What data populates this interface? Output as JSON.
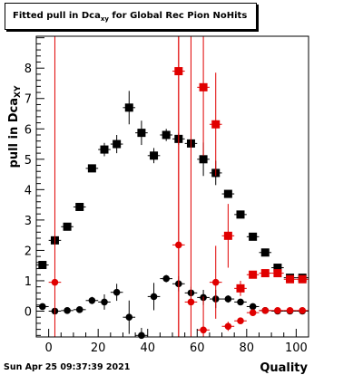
{
  "title_main": "Fitted pull in Dca",
  "title_sub": "xy",
  "title_rest": " for Global Rec Pion NoHits",
  "footer": "Sun Apr 25 09:37:39 2021",
  "chart_data": {
    "type": "scatter",
    "xlabel": "Quality",
    "ylabel_main": "pull in Dca",
    "ylabel_sub": "XY",
    "xlim": [
      -5,
      105
    ],
    "ylim": [
      -0.85,
      9.05
    ],
    "xticks": [
      0,
      20,
      40,
      60,
      80,
      100
    ],
    "yticks": [
      0,
      1,
      2,
      3,
      4,
      5,
      6,
      7,
      8
    ],
    "colors": {
      "black": "#000000",
      "red": "#e00000"
    },
    "series": [
      {
        "marker": "square",
        "color": "#000000",
        "points": [
          {
            "x": -2.5,
            "y": 1.52,
            "ey": 0.1
          },
          {
            "x": 2.5,
            "y": 2.33,
            "ey": 0.15
          },
          {
            "x": 7.5,
            "y": 2.78,
            "ey": 0.1
          },
          {
            "x": 12.5,
            "y": 3.43,
            "ey": 0.1
          },
          {
            "x": 17.5,
            "y": 4.7,
            "ey": 0.12
          },
          {
            "x": 22.5,
            "y": 5.32,
            "ey": 0.22
          },
          {
            "x": 27.5,
            "y": 5.5,
            "ey": 0.3
          },
          {
            "x": 32.5,
            "y": 6.7,
            "ey": 0.55
          },
          {
            "x": 37.5,
            "y": 5.87,
            "ey": 0.4
          },
          {
            "x": 42.5,
            "y": 5.12,
            "ey": 0.25
          },
          {
            "x": 47.5,
            "y": 5.8,
            "ey": 0.2
          },
          {
            "x": 52.5,
            "y": 5.67,
            "ey": 0.2
          },
          {
            "x": 57.5,
            "y": 5.52,
            "ey": 0.15
          },
          {
            "x": 62.5,
            "y": 5.0,
            "ey": 0.55
          },
          {
            "x": 67.5,
            "y": 4.55,
            "ey": 0.4
          },
          {
            "x": 72.5,
            "y": 3.86,
            "ey": 0.12
          },
          {
            "x": 77.5,
            "y": 3.18,
            "ey": 0.1
          },
          {
            "x": 82.5,
            "y": 2.45,
            "ey": 0.08
          },
          {
            "x": 87.5,
            "y": 1.93,
            "ey": 0.06
          },
          {
            "x": 92.5,
            "y": 1.43,
            "ey": 0.05
          },
          {
            "x": 97.5,
            "y": 1.1,
            "ey": 0.05
          },
          {
            "x": 102.5,
            "y": 1.1,
            "ey": 0.05
          }
        ]
      },
      {
        "marker": "circle",
        "color": "#000000",
        "points": [
          {
            "x": -2.5,
            "y": 0.15,
            "ey": 0.05
          },
          {
            "x": 2.5,
            "y": 0.0,
            "ey": 0.05
          },
          {
            "x": 7.5,
            "y": 0.02,
            "ey": 0.05
          },
          {
            "x": 12.5,
            "y": 0.05,
            "ey": 0.06
          },
          {
            "x": 17.5,
            "y": 0.35,
            "ey": 0.12
          },
          {
            "x": 22.5,
            "y": 0.3,
            "ey": 0.25
          },
          {
            "x": 27.5,
            "y": 0.62,
            "ey": 0.28
          },
          {
            "x": 32.5,
            "y": -0.2,
            "ey": 0.55
          },
          {
            "x": 37.5,
            "y": -0.8,
            "ey": 0.25
          },
          {
            "x": 42.5,
            "y": 0.48,
            "ey": 0.45
          },
          {
            "x": 47.5,
            "y": 1.07,
            "ey": 0.12
          },
          {
            "x": 52.5,
            "y": 0.9,
            "ey": 0.25
          },
          {
            "x": 57.5,
            "y": 0.6,
            "ey": 0.2
          },
          {
            "x": 62.5,
            "y": 0.45,
            "ey": 0.25
          },
          {
            "x": 67.5,
            "y": 0.4,
            "ey": 0.3
          },
          {
            "x": 72.5,
            "y": 0.4,
            "ey": 0.12
          },
          {
            "x": 77.5,
            "y": 0.3,
            "ey": 0.1
          },
          {
            "x": 82.5,
            "y": 0.15,
            "ey": 0.05
          },
          {
            "x": 87.5,
            "y": 0.02,
            "ey": 0.05
          },
          {
            "x": 92.5,
            "y": 0.0,
            "ey": 0.05
          },
          {
            "x": 97.5,
            "y": 0.0,
            "ey": 0.05
          },
          {
            "x": 102.5,
            "y": 0.0,
            "ey": 0.05
          }
        ]
      },
      {
        "marker": "square",
        "color": "#e00000",
        "points": [
          {
            "x": 52.5,
            "y": 7.9,
            "ey": 99
          },
          {
            "x": 62.5,
            "y": 7.37,
            "ey": 2.25
          },
          {
            "x": 67.5,
            "y": 6.15,
            "ey": 1.7
          },
          {
            "x": 72.5,
            "y": 2.48,
            "ey": 1.05
          },
          {
            "x": 77.5,
            "y": 0.75,
            "ey": 0.25
          },
          {
            "x": 82.5,
            "y": 1.2,
            "ey": 0.08
          },
          {
            "x": 87.5,
            "y": 1.25,
            "ey": 0.06
          },
          {
            "x": 92.5,
            "y": 1.25,
            "ey": 0.06
          },
          {
            "x": 97.5,
            "y": 1.05,
            "ey": 0.05
          },
          {
            "x": 102.5,
            "y": 1.05,
            "ey": 0.05
          }
        ]
      },
      {
        "marker": "circle",
        "color": "#e00000",
        "points": [
          {
            "x": 2.5,
            "y": 0.95,
            "ey": 99
          },
          {
            "x": 52.5,
            "y": 2.18,
            "ey": 99
          },
          {
            "x": 57.5,
            "y": 0.3,
            "ey": 99
          },
          {
            "x": 62.5,
            "y": -0.62,
            "ey": 1.1
          },
          {
            "x": 67.5,
            "y": 0.95,
            "ey": 1.2
          },
          {
            "x": 72.5,
            "y": -0.5,
            "ey": 0.15
          },
          {
            "x": 77.5,
            "y": -0.32,
            "ey": 0.1
          },
          {
            "x": 82.5,
            "y": -0.05,
            "ey": 0.06
          },
          {
            "x": 87.5,
            "y": 0.02,
            "ey": 0.05
          },
          {
            "x": 92.5,
            "y": 0.02,
            "ey": 0.05
          },
          {
            "x": 97.5,
            "y": 0.02,
            "ey": 0.05
          },
          {
            "x": 102.5,
            "y": 0.02,
            "ey": 0.05
          }
        ]
      }
    ]
  }
}
